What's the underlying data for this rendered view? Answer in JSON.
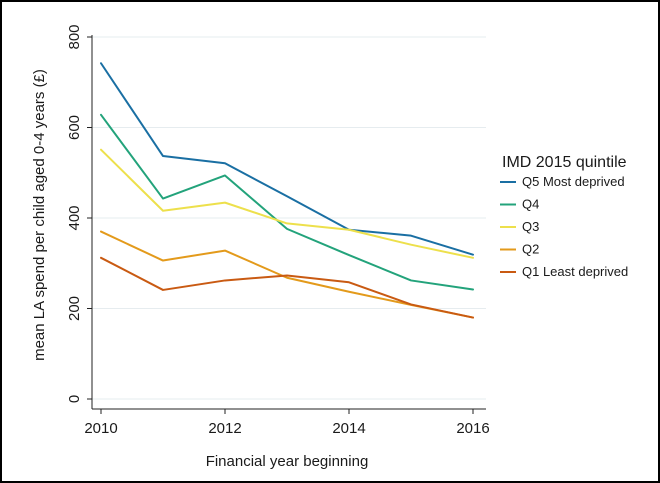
{
  "chart_data": {
    "type": "line",
    "title": "",
    "xlabel": "Financial year beginning",
    "ylabel": "mean LA spend per child aged 0-4 years (£)",
    "x": [
      2010,
      2011,
      2012,
      2013,
      2014,
      2015,
      2016
    ],
    "x_ticks": [
      2010,
      2012,
      2014,
      2016
    ],
    "y_ticks": [
      0,
      200,
      400,
      600,
      800
    ],
    "xlim": [
      2010,
      2016
    ],
    "ylim": [
      0,
      800
    ],
    "grid": "horizontal",
    "legend_position": "right",
    "legend_title": "IMD 2015 quintile",
    "series": [
      {
        "name": "Q5 Most deprived",
        "color": "#1a6fa3",
        "values": [
          742,
          537,
          521,
          448,
          374,
          361,
          319
        ]
      },
      {
        "name": "Q4",
        "color": "#23a37b",
        "values": [
          628,
          443,
          494,
          376,
          318,
          262,
          242
        ]
      },
      {
        "name": "Q3",
        "color": "#ede04c",
        "values": [
          551,
          416,
          434,
          388,
          374,
          341,
          312
        ]
      },
      {
        "name": "Q2",
        "color": "#e39a1b",
        "values": [
          370,
          306,
          328,
          268,
          237,
          208,
          180
        ]
      },
      {
        "name": "Q1 Least deprived",
        "color": "#c95a12",
        "values": [
          312,
          241,
          262,
          273,
          258,
          209,
          180
        ]
      }
    ]
  }
}
